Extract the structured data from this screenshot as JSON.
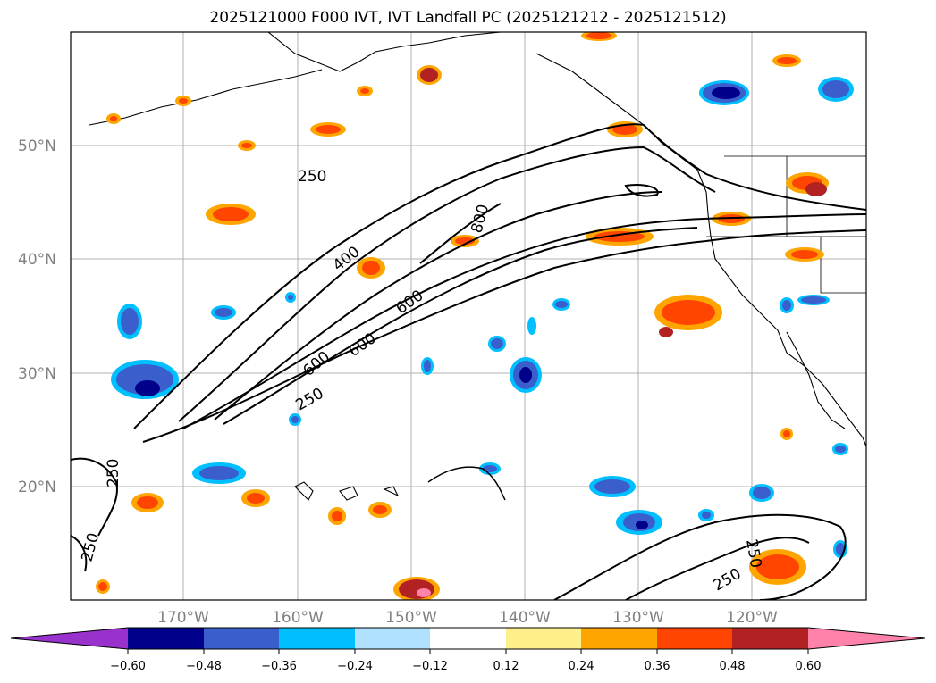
{
  "title": "2025121000 F000 IVT, IVT Landfall PC (2025121212 - 2025121512)",
  "map": {
    "lat_ticks": [
      "50°N",
      "40°N",
      "30°N",
      "20°N"
    ],
    "lon_ticks": [
      "170°W",
      "160°W",
      "150°W",
      "140°W",
      "130°W",
      "120°W"
    ],
    "contour_labels": [
      "250",
      "400",
      "600",
      "800",
      "600",
      "600",
      "250",
      "250",
      "250",
      "250",
      "250"
    ]
  },
  "colorbar": {
    "colors": [
      "#9932cc",
      "#00008b",
      "#3a5fcd",
      "#00bfff",
      "#b0e2ff",
      "#ffffff",
      "#fff08c",
      "#ffa500",
      "#ff4500",
      "#b22222",
      "#ff82ab"
    ],
    "tick_labels": [
      "−0.60",
      "−0.48",
      "−0.36",
      "−0.24",
      "−0.12",
      "0.12",
      "0.24",
      "0.36",
      "0.48",
      "0.60"
    ]
  }
}
